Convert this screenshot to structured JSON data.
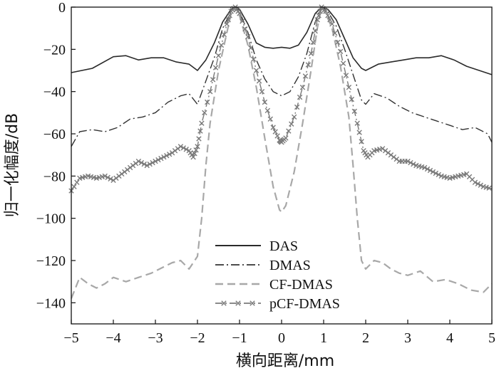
{
  "chart_data": {
    "type": "line",
    "xlabel": "横向距离/mm",
    "ylabel": "归一化幅度/dB",
    "xlim": [
      -5,
      5
    ],
    "ylim": [
      -150,
      0
    ],
    "xticks": [
      -5,
      -4,
      -3,
      -2,
      -1,
      0,
      1,
      2,
      3,
      4,
      5
    ],
    "yticks": [
      0,
      -20,
      -40,
      -60,
      -80,
      -100,
      -120,
      -140
    ],
    "legend_position": "bottom-center",
    "grid": false,
    "series": [
      {
        "name": "DAS",
        "color": "#2a2a2a",
        "style": "solid",
        "points": [
          [
            -5,
            -31
          ],
          [
            -4.5,
            -29
          ],
          [
            -4,
            -23.5
          ],
          [
            -3.7,
            -23
          ],
          [
            -3.4,
            -25
          ],
          [
            -3.1,
            -24
          ],
          [
            -2.8,
            -24
          ],
          [
            -2.5,
            -26
          ],
          [
            -2.2,
            -27
          ],
          [
            -2.0,
            -30
          ],
          [
            -1.8,
            -25
          ],
          [
            -1.6,
            -17
          ],
          [
            -1.4,
            -7
          ],
          [
            -1.2,
            -1
          ],
          [
            -1.1,
            0
          ],
          [
            -1.0,
            -1
          ],
          [
            -0.8,
            -8
          ],
          [
            -0.6,
            -17
          ],
          [
            -0.4,
            -19
          ],
          [
            -0.2,
            -19.5
          ],
          [
            0,
            -19
          ],
          [
            0.2,
            -19.5
          ],
          [
            0.4,
            -18
          ],
          [
            0.6,
            -12
          ],
          [
            0.8,
            -3
          ],
          [
            0.95,
            0
          ],
          [
            1.1,
            -1
          ],
          [
            1.3,
            -6
          ],
          [
            1.5,
            -15
          ],
          [
            1.7,
            -24
          ],
          [
            1.9,
            -29
          ],
          [
            2.0,
            -30
          ],
          [
            2.3,
            -27
          ],
          [
            2.6,
            -26
          ],
          [
            2.9,
            -25
          ],
          [
            3.2,
            -24
          ],
          [
            3.5,
            -24
          ],
          [
            3.8,
            -23
          ],
          [
            4.1,
            -25
          ],
          [
            4.4,
            -28
          ],
          [
            4.7,
            -30
          ],
          [
            5,
            -32
          ]
        ]
      },
      {
        "name": "DMAS",
        "color": "#333333",
        "style": "dashdot",
        "points": [
          [
            -5,
            -66
          ],
          [
            -4.8,
            -59
          ],
          [
            -4.5,
            -58
          ],
          [
            -4.2,
            -59
          ],
          [
            -3.9,
            -57
          ],
          [
            -3.6,
            -53
          ],
          [
            -3.3,
            -52
          ],
          [
            -3.0,
            -50
          ],
          [
            -2.7,
            -45
          ],
          [
            -2.4,
            -42
          ],
          [
            -2.2,
            -41
          ],
          [
            -2.0,
            -46
          ],
          [
            -1.8,
            -35
          ],
          [
            -1.6,
            -24
          ],
          [
            -1.4,
            -10
          ],
          [
            -1.2,
            -2
          ],
          [
            -1.1,
            0
          ],
          [
            -1.0,
            -2
          ],
          [
            -0.8,
            -12
          ],
          [
            -0.6,
            -25
          ],
          [
            -0.4,
            -34
          ],
          [
            -0.2,
            -40
          ],
          [
            0,
            -42
          ],
          [
            0.2,
            -40
          ],
          [
            0.4,
            -33
          ],
          [
            0.6,
            -22
          ],
          [
            0.8,
            -7
          ],
          [
            0.95,
            0
          ],
          [
            1.1,
            -2
          ],
          [
            1.3,
            -9
          ],
          [
            1.5,
            -20
          ],
          [
            1.7,
            -32
          ],
          [
            1.9,
            -44
          ],
          [
            2.0,
            -46
          ],
          [
            2.2,
            -41
          ],
          [
            2.5,
            -43
          ],
          [
            2.8,
            -47
          ],
          [
            3.1,
            -50
          ],
          [
            3.4,
            -52
          ],
          [
            3.7,
            -54
          ],
          [
            4.0,
            -56
          ],
          [
            4.3,
            -58
          ],
          [
            4.6,
            -57
          ],
          [
            4.9,
            -60
          ],
          [
            5,
            -64
          ]
        ]
      },
      {
        "name": "CF-DMAS",
        "color": "#a8a8a8",
        "style": "dashed",
        "points": [
          [
            -5,
            -138
          ],
          [
            -4.8,
            -128
          ],
          [
            -4.6,
            -131
          ],
          [
            -4.4,
            -133
          ],
          [
            -4.2,
            -131
          ],
          [
            -4.0,
            -128
          ],
          [
            -3.7,
            -130
          ],
          [
            -3.4,
            -128
          ],
          [
            -3.1,
            -126
          ],
          [
            -2.8,
            -123
          ],
          [
            -2.6,
            -121
          ],
          [
            -2.4,
            -120
          ],
          [
            -2.2,
            -124
          ],
          [
            -2.0,
            -118
          ],
          [
            -1.9,
            -100
          ],
          [
            -1.8,
            -75
          ],
          [
            -1.7,
            -55
          ],
          [
            -1.5,
            -30
          ],
          [
            -1.3,
            -12
          ],
          [
            -1.2,
            -3
          ],
          [
            -1.1,
            0
          ],
          [
            -1.0,
            -4
          ],
          [
            -0.8,
            -18
          ],
          [
            -0.6,
            -38
          ],
          [
            -0.4,
            -62
          ],
          [
            -0.2,
            -85
          ],
          [
            -0.05,
            -96
          ],
          [
            0,
            -97
          ],
          [
            0.1,
            -94
          ],
          [
            0.3,
            -78
          ],
          [
            0.5,
            -55
          ],
          [
            0.7,
            -30
          ],
          [
            0.85,
            -10
          ],
          [
            0.95,
            0
          ],
          [
            1.05,
            -3
          ],
          [
            1.2,
            -10
          ],
          [
            1.4,
            -28
          ],
          [
            1.6,
            -52
          ],
          [
            1.7,
            -75
          ],
          [
            1.8,
            -100
          ],
          [
            1.9,
            -120
          ],
          [
            2.0,
            -124
          ],
          [
            2.2,
            -120
          ],
          [
            2.4,
            -121
          ],
          [
            2.6,
            -124
          ],
          [
            2.8,
            -126
          ],
          [
            3.0,
            -127
          ],
          [
            3.3,
            -125
          ],
          [
            3.6,
            -130
          ],
          [
            3.9,
            -129
          ],
          [
            4.2,
            -131
          ],
          [
            4.5,
            -134
          ],
          [
            4.8,
            -135
          ],
          [
            5,
            -131
          ]
        ]
      },
      {
        "name": "pCF-DMAS",
        "color": "#7a7a7a",
        "style": "dashdot-x",
        "points": [
          [
            -5,
            -87
          ],
          [
            -4.8,
            -81
          ],
          [
            -4.6,
            -80
          ],
          [
            -4.4,
            -81
          ],
          [
            -4.2,
            -80
          ],
          [
            -4.0,
            -82
          ],
          [
            -3.8,
            -79
          ],
          [
            -3.6,
            -76
          ],
          [
            -3.4,
            -73
          ],
          [
            -3.2,
            -75
          ],
          [
            -3.0,
            -73
          ],
          [
            -2.8,
            -71
          ],
          [
            -2.6,
            -69
          ],
          [
            -2.4,
            -66
          ],
          [
            -2.2,
            -68
          ],
          [
            -2.1,
            -71
          ],
          [
            -2.0,
            -66
          ],
          [
            -1.9,
            -55
          ],
          [
            -1.7,
            -40
          ],
          [
            -1.5,
            -23
          ],
          [
            -1.3,
            -8
          ],
          [
            -1.2,
            -2
          ],
          [
            -1.1,
            0
          ],
          [
            -1.0,
            -3
          ],
          [
            -0.8,
            -14
          ],
          [
            -0.6,
            -30
          ],
          [
            -0.4,
            -45
          ],
          [
            -0.2,
            -57
          ],
          [
            -0.05,
            -63
          ],
          [
            0,
            -64
          ],
          [
            0.1,
            -62
          ],
          [
            0.3,
            -52
          ],
          [
            0.5,
            -38
          ],
          [
            0.7,
            -22
          ],
          [
            0.85,
            -6
          ],
          [
            0.95,
            0
          ],
          [
            1.05,
            -2
          ],
          [
            1.2,
            -8
          ],
          [
            1.4,
            -21
          ],
          [
            1.6,
            -38
          ],
          [
            1.8,
            -55
          ],
          [
            1.95,
            -68
          ],
          [
            2.05,
            -71
          ],
          [
            2.2,
            -68
          ],
          [
            2.4,
            -67
          ],
          [
            2.6,
            -70
          ],
          [
            2.8,
            -73
          ],
          [
            3.0,
            -73
          ],
          [
            3.2,
            -75
          ],
          [
            3.4,
            -76
          ],
          [
            3.6,
            -78
          ],
          [
            3.8,
            -80
          ],
          [
            4.0,
            -81
          ],
          [
            4.2,
            -80
          ],
          [
            4.4,
            -79
          ],
          [
            4.6,
            -83
          ],
          [
            4.8,
            -85
          ],
          [
            5,
            -86
          ]
        ]
      }
    ]
  }
}
